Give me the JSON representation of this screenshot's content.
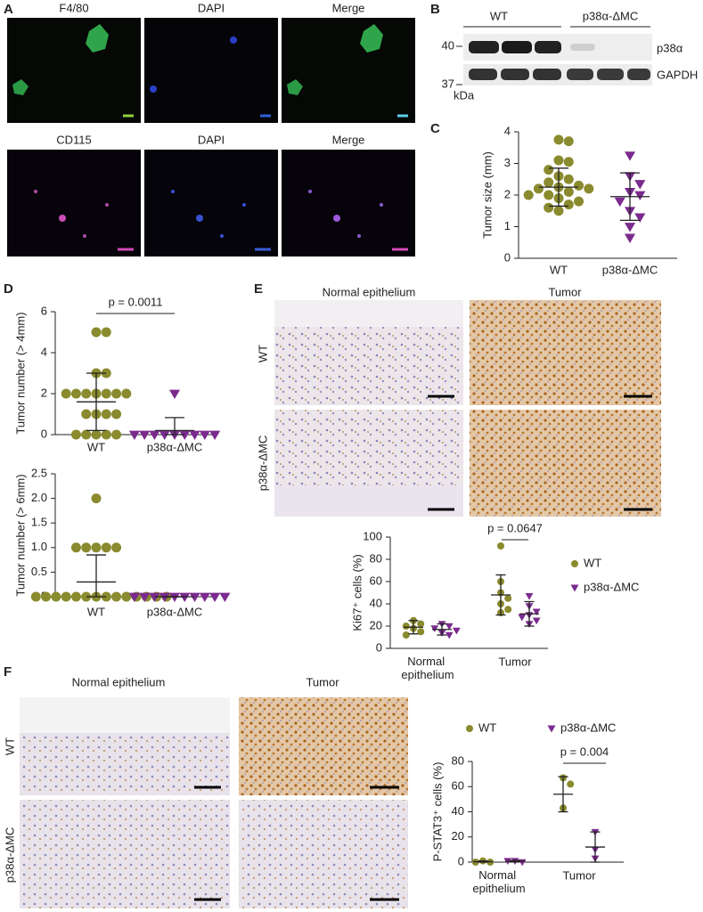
{
  "panel_labels": [
    "A",
    "B",
    "C",
    "D",
    "E",
    "F"
  ],
  "panel_a": {
    "row1": [
      "F4/80",
      "DAPI",
      "Merge"
    ],
    "row2": [
      "CD115",
      "DAPI",
      "Merge"
    ]
  },
  "panel_b": {
    "groups": [
      "WT",
      "p38α-ΔMC"
    ],
    "markers": [
      "40",
      "37"
    ],
    "unit": "kDa",
    "bands": [
      "p38α",
      "GAPDH"
    ]
  },
  "panel_e": {
    "columns": [
      "Normal epithelium",
      "Tumor"
    ],
    "rows": [
      "WT",
      "p38α-ΔMC"
    ]
  },
  "panel_f": {
    "columns": [
      "Normal epithelium",
      "Tumor"
    ],
    "rows": [
      "WT",
      "p38α-ΔMC"
    ]
  },
  "chart_data": [
    {
      "type": "dot",
      "ylabel": "Tumor size (mm)",
      "ylim": [
        0,
        4
      ],
      "yticks": [
        0,
        1,
        2,
        3,
        4
      ],
      "categories": [
        "WT",
        "p38α-ΔMC"
      ],
      "colors": [
        "#8a8a2e",
        "#7b2a8e"
      ],
      "markers": [
        "circle",
        "triangle"
      ],
      "values": [
        [
          3.75,
          3.7,
          3.1,
          3.05,
          2.8,
          2.6,
          2.5,
          2.4,
          2.3,
          2.25,
          2.2,
          2.2,
          2.1,
          2.0,
          2.0,
          1.9,
          1.8,
          1.7,
          1.6,
          1.5
        ],
        [
          3.25,
          2.6,
          2.35,
          2.1,
          2.0,
          1.8,
          1.5,
          1.3,
          1.0,
          0.65
        ]
      ],
      "means": [
        2.25,
        1.95
      ],
      "sds": [
        0.6,
        0.75
      ]
    },
    {
      "type": "dot",
      "ylabel": "Tumor number (> 4mm)",
      "ylim": [
        0,
        6
      ],
      "yticks": [
        0,
        2,
        4,
        6
      ],
      "categories": [
        "WT",
        "p38α-ΔMC"
      ],
      "colors": [
        "#8a8a2e",
        "#7b2a8e"
      ],
      "markers": [
        "circle",
        "triangle"
      ],
      "values": [
        [
          5,
          5,
          3,
          3,
          2,
          2,
          2,
          2,
          2,
          2,
          2,
          1,
          1,
          1,
          1,
          0,
          0,
          0,
          0,
          0
        ],
        [
          2,
          0,
          0,
          0,
          0,
          0,
          0,
          0,
          0,
          0
        ]
      ],
      "means": [
        1.6,
        0.2
      ],
      "sds": [
        1.4,
        0.63
      ],
      "annotation": "p = 0.0011"
    },
    {
      "type": "dot",
      "ylabel": "Tumor number (> 6mm)",
      "ylim": [
        0,
        2.5
      ],
      "yticks": [
        0,
        0.5,
        {
          "value": 1,
          "label": "1.0"
        },
        1.5,
        {
          "value": 2,
          "label": "2.0"
        },
        2.5
      ],
      "categories": [
        "WT",
        "p38α-ΔMC"
      ],
      "colors": [
        "#8a8a2e",
        "#7b2a8e"
      ],
      "markers": [
        "circle",
        "triangle"
      ],
      "values": [
        [
          2,
          1,
          1,
          1,
          1,
          1,
          0,
          0,
          0,
          0,
          0,
          0,
          0,
          0,
          0,
          0,
          0,
          0,
          0,
          0
        ],
        [
          0,
          0,
          0,
          0,
          0,
          0,
          0,
          0,
          0,
          0
        ]
      ],
      "means": [
        0.3,
        0
      ],
      "sds": [
        0.55,
        0
      ]
    },
    {
      "type": "dot",
      "ylabel": "Ki67⁺ cells (%)",
      "ylim": [
        0,
        100
      ],
      "yticks": [
        0,
        20,
        40,
        60,
        80,
        100
      ],
      "categories": [
        "Normal epithelium",
        "Tumor"
      ],
      "legend": "right",
      "annotation": "p = 0.0647",
      "series": [
        {
          "name": "WT",
          "color": "#8a8a2e",
          "marker": "circle",
          "values": [
            [
              25,
              22,
              20,
              18,
              15,
              12
            ],
            [
              92,
              60,
              50,
              45,
              40,
              35,
              32
            ]
          ],
          "means": [
            19,
            48
          ],
          "sds": [
            6,
            18
          ]
        },
        {
          "name": "p38α-ΔMC",
          "color": "#7b2a8e",
          "marker": "triangle",
          "values": [
            [
              22,
              20,
              18,
              16,
              14,
              12
            ],
            [
              47,
              38,
              33,
              30,
              28,
              25,
              22
            ]
          ],
          "means": [
            17,
            31
          ],
          "sds": [
            5,
            11
          ]
        }
      ]
    },
    {
      "type": "dot",
      "ylabel": "P-STAT3⁺ cells (%)",
      "ylim": [
        0,
        80
      ],
      "yticks": [
        0,
        20,
        40,
        60,
        80
      ],
      "categories": [
        "Normal epithelium",
        "Tumor"
      ],
      "legend": "top",
      "annotation": "p = 0.004",
      "series": [
        {
          "name": "WT",
          "color": "#8a8a2e",
          "marker": "circle",
          "values": [
            [
              1,
              0,
              0
            ],
            [
              67,
              62,
              43
            ]
          ],
          "means": [
            0.3,
            54
          ],
          "sds": [
            0.6,
            14
          ]
        },
        {
          "name": "p38α-ΔMC",
          "color": "#7b2a8e",
          "marker": "triangle",
          "values": [
            [
              1,
              0,
              1
            ],
            [
              24,
              10,
              3
            ]
          ],
          "means": [
            0.7,
            12
          ],
          "sds": [
            0.6,
            12
          ]
        }
      ]
    }
  ]
}
